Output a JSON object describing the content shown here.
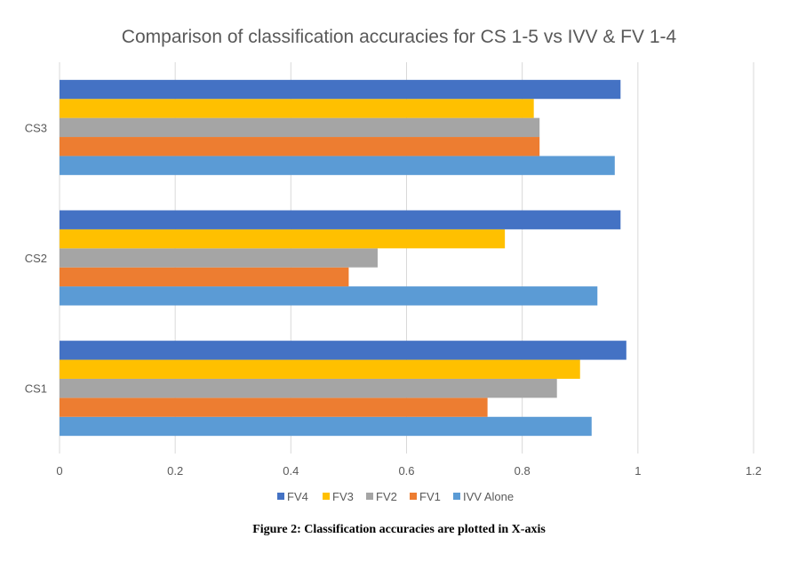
{
  "chart_data": {
    "type": "bar",
    "orientation": "horizontal",
    "title": "Comparison of classification accuracies for CS 1-5 vs IVV & FV 1-4",
    "categories": [
      "CS1",
      "CS2",
      "CS3"
    ],
    "series": [
      {
        "name": "IVV Alone",
        "color": "#5B9BD5",
        "values": [
          0.92,
          0.93,
          0.96
        ]
      },
      {
        "name": "FV1",
        "color": "#ED7D31",
        "values": [
          0.74,
          0.5,
          0.83
        ]
      },
      {
        "name": "FV2",
        "color": "#A5A5A5",
        "values": [
          0.86,
          0.55,
          0.83
        ]
      },
      {
        "name": "FV3",
        "color": "#FFC000",
        "values": [
          0.9,
          0.77,
          0.82
        ]
      },
      {
        "name": "FV4",
        "color": "#4472C4",
        "values": [
          0.98,
          0.97,
          0.97
        ]
      }
    ],
    "xlim": [
      0,
      1.2
    ],
    "xticks": [
      "0",
      "0.2",
      "0.4",
      "0.6",
      "0.8",
      "1",
      "1.2"
    ],
    "legend_order": [
      "FV4",
      "FV3",
      "FV2",
      "FV1",
      "IVV Alone"
    ],
    "grid": true,
    "legend_position": "bottom"
  },
  "caption": "Figure 2: Classification accuracies are plotted in X-axis"
}
